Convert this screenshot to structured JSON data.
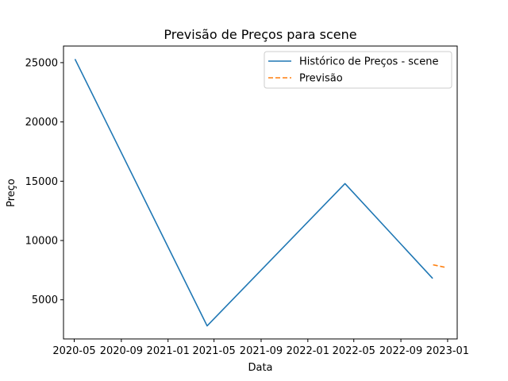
{
  "chart_data": {
    "type": "line",
    "title": "Previsão de Preços para scene",
    "xlabel": "Data",
    "ylabel": "Preço",
    "x_ticks": [
      "2020-05",
      "2020-09",
      "2021-01",
      "2021-05",
      "2021-09",
      "2022-01",
      "2022-05",
      "2022-09",
      "2023-01"
    ],
    "y_ticks": [
      5000,
      10000,
      15000,
      20000,
      25000
    ],
    "xlim": [
      "2020-04-03",
      "2023-01-26"
    ],
    "ylim": [
      1700,
      26400
    ],
    "grid": false,
    "legend_position": "top-right",
    "series": [
      {
        "name": "Histórico de Preços - scene",
        "color": "#1f77b4",
        "style": "solid",
        "points": [
          {
            "x": "2020-05-03",
            "y": 25300
          },
          {
            "x": "2021-04-13",
            "y": 2800
          },
          {
            "x": "2022-04-08",
            "y": 14800
          },
          {
            "x": "2022-11-23",
            "y": 6800
          }
        ]
      },
      {
        "name": "Previsão",
        "color": "#ff7f0e",
        "style": "dashed",
        "points": [
          {
            "x": "2022-11-24",
            "y": 7950
          },
          {
            "x": "2022-12-24",
            "y": 7750
          }
        ]
      }
    ]
  }
}
